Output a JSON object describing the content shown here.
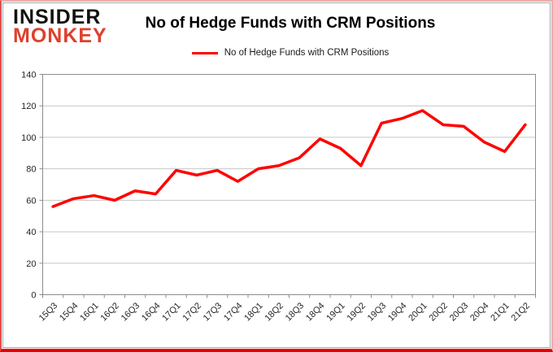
{
  "logo": {
    "line1": "INSIDER",
    "line2": "MONKEY"
  },
  "header": {
    "title": "No of Hedge Funds with CRM Positions"
  },
  "legend": {
    "label": "No of Hedge Funds with CRM Positions",
    "line_color": "#ff0000"
  },
  "colors": {
    "series": "#ff0000",
    "gridline": "#c6c6c6",
    "axis": "#8c8c8c",
    "tick_text": "#262626",
    "logo_red": "#df402d",
    "frame_red": "#e60000"
  },
  "chart_data": {
    "type": "line",
    "title": "No of Hedge Funds with CRM Positions",
    "xlabel": "",
    "ylabel": "",
    "categories": [
      "15Q3",
      "15Q4",
      "16Q1",
      "16Q2",
      "16Q3",
      "16Q4",
      "17Q1",
      "17Q2",
      "17Q3",
      "17Q4",
      "18Q1",
      "18Q2",
      "18Q3",
      "18Q4",
      "19Q1",
      "19Q2",
      "19Q3",
      "19Q4",
      "20Q1",
      "20Q2",
      "20Q3",
      "20Q4",
      "21Q1",
      "21Q2"
    ],
    "series": [
      {
        "name": "No of Hedge Funds with CRM Positions",
        "color": "#ff0000",
        "values": [
          56,
          61,
          63,
          60,
          66,
          64,
          79,
          76,
          79,
          72,
          80,
          82,
          87,
          99,
          93,
          82,
          109,
          112,
          117,
          108,
          107,
          97,
          91,
          108
        ]
      }
    ],
    "ylim": [
      0,
      140
    ],
    "y_ticks": [
      0,
      20,
      40,
      60,
      80,
      100,
      120,
      140
    ],
    "grid": true,
    "legend_position": "top"
  }
}
